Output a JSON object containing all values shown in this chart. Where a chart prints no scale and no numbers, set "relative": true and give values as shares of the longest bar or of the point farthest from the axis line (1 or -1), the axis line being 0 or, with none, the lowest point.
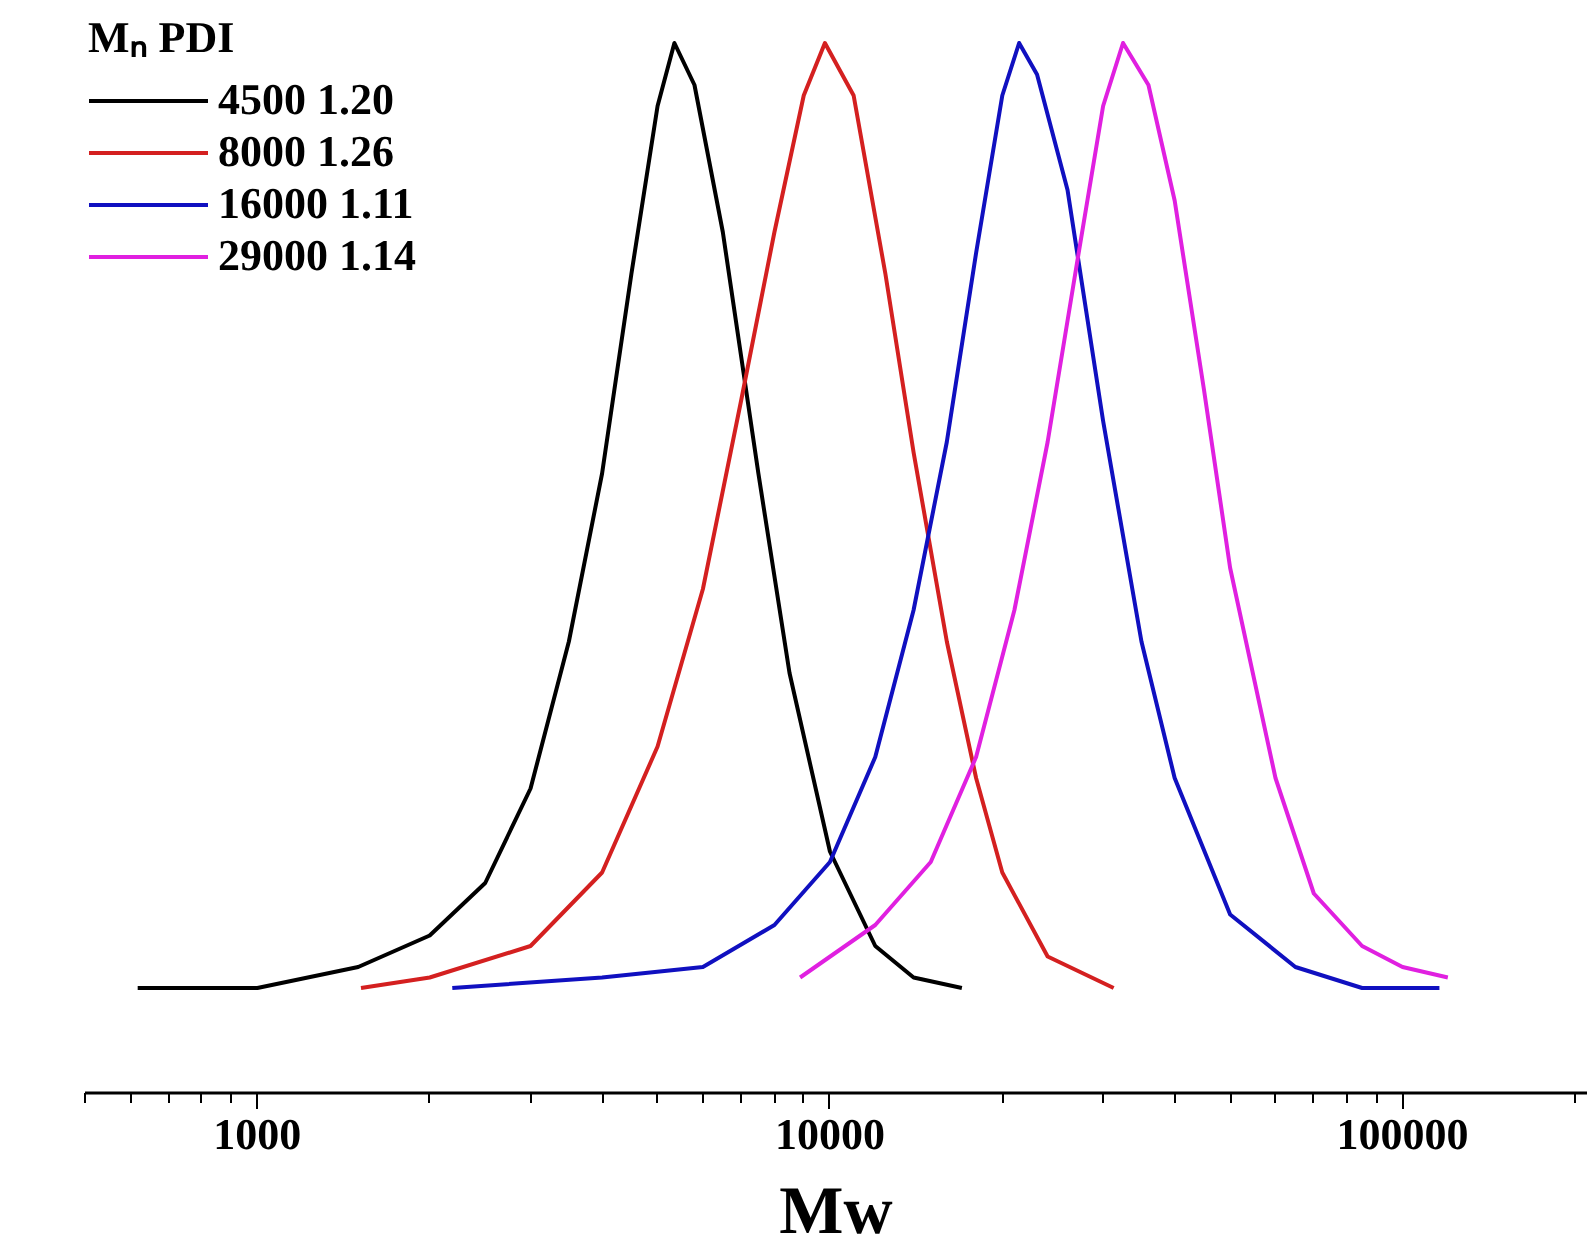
{
  "chart_data": {
    "type": "line",
    "relative": true,
    "xlabel": "Mw",
    "log": "x",
    "xlim": [
      500,
      210000
    ],
    "xticks": [
      1000,
      10000,
      100000
    ],
    "grid": false,
    "legend": "top left",
    "legend_title": "Mₙ PDI",
    "line_style": "solid",
    "marker": "none",
    "series": [
      {
        "name": "4500 1.20",
        "color": "#000000",
        "x": [
          618,
          800,
          1000,
          1500,
          2000,
          2500,
          3000,
          3500,
          4000,
          4500,
          5000,
          5350,
          5800,
          6500,
          7500,
          8500,
          10000,
          12000,
          14000,
          17000
        ],
        "values": [
          0.1,
          0.1,
          0.1,
          0.12,
          0.15,
          0.2,
          0.29,
          0.43,
          0.59,
          0.78,
          0.94,
          1.0,
          0.96,
          0.82,
          0.59,
          0.4,
          0.23,
          0.14,
          0.11,
          0.1
        ]
      },
      {
        "name": "8000 1.26",
        "color": "#d42020",
        "x": [
          1517,
          2000,
          3000,
          4000,
          5000,
          6000,
          7000,
          8000,
          9000,
          9800,
          11000,
          12500,
          14000,
          16000,
          18000,
          20000,
          24000,
          31300
        ],
        "values": [
          0.1,
          0.11,
          0.14,
          0.21,
          0.33,
          0.48,
          0.66,
          0.82,
          0.95,
          1.0,
          0.95,
          0.78,
          0.61,
          0.43,
          0.3,
          0.21,
          0.13,
          0.1
        ]
      },
      {
        "name": "16000 1.11",
        "color": "#1010c0",
        "x": [
          2190,
          4000,
          6000,
          8000,
          10000,
          12000,
          14000,
          16000,
          18000,
          20000,
          21400,
          23000,
          26000,
          30000,
          35000,
          40000,
          50000,
          65000,
          85000,
          116000
        ],
        "values": [
          0.1,
          0.11,
          0.12,
          0.16,
          0.22,
          0.32,
          0.46,
          0.62,
          0.8,
          0.95,
          1.0,
          0.97,
          0.86,
          0.64,
          0.43,
          0.3,
          0.17,
          0.12,
          0.1,
          0.1
        ]
      },
      {
        "name": "29000 1.14",
        "color": "#e020e0",
        "x": [
          8870,
          12000,
          15000,
          18000,
          21000,
          24000,
          27000,
          30000,
          32500,
          36000,
          40000,
          45000,
          50000,
          60000,
          70000,
          85000,
          100000,
          120000
        ],
        "values": [
          0.11,
          0.16,
          0.22,
          0.32,
          0.46,
          0.62,
          0.79,
          0.94,
          1.0,
          0.96,
          0.85,
          0.67,
          0.5,
          0.3,
          0.19,
          0.14,
          0.12,
          0.11
        ]
      }
    ]
  }
}
